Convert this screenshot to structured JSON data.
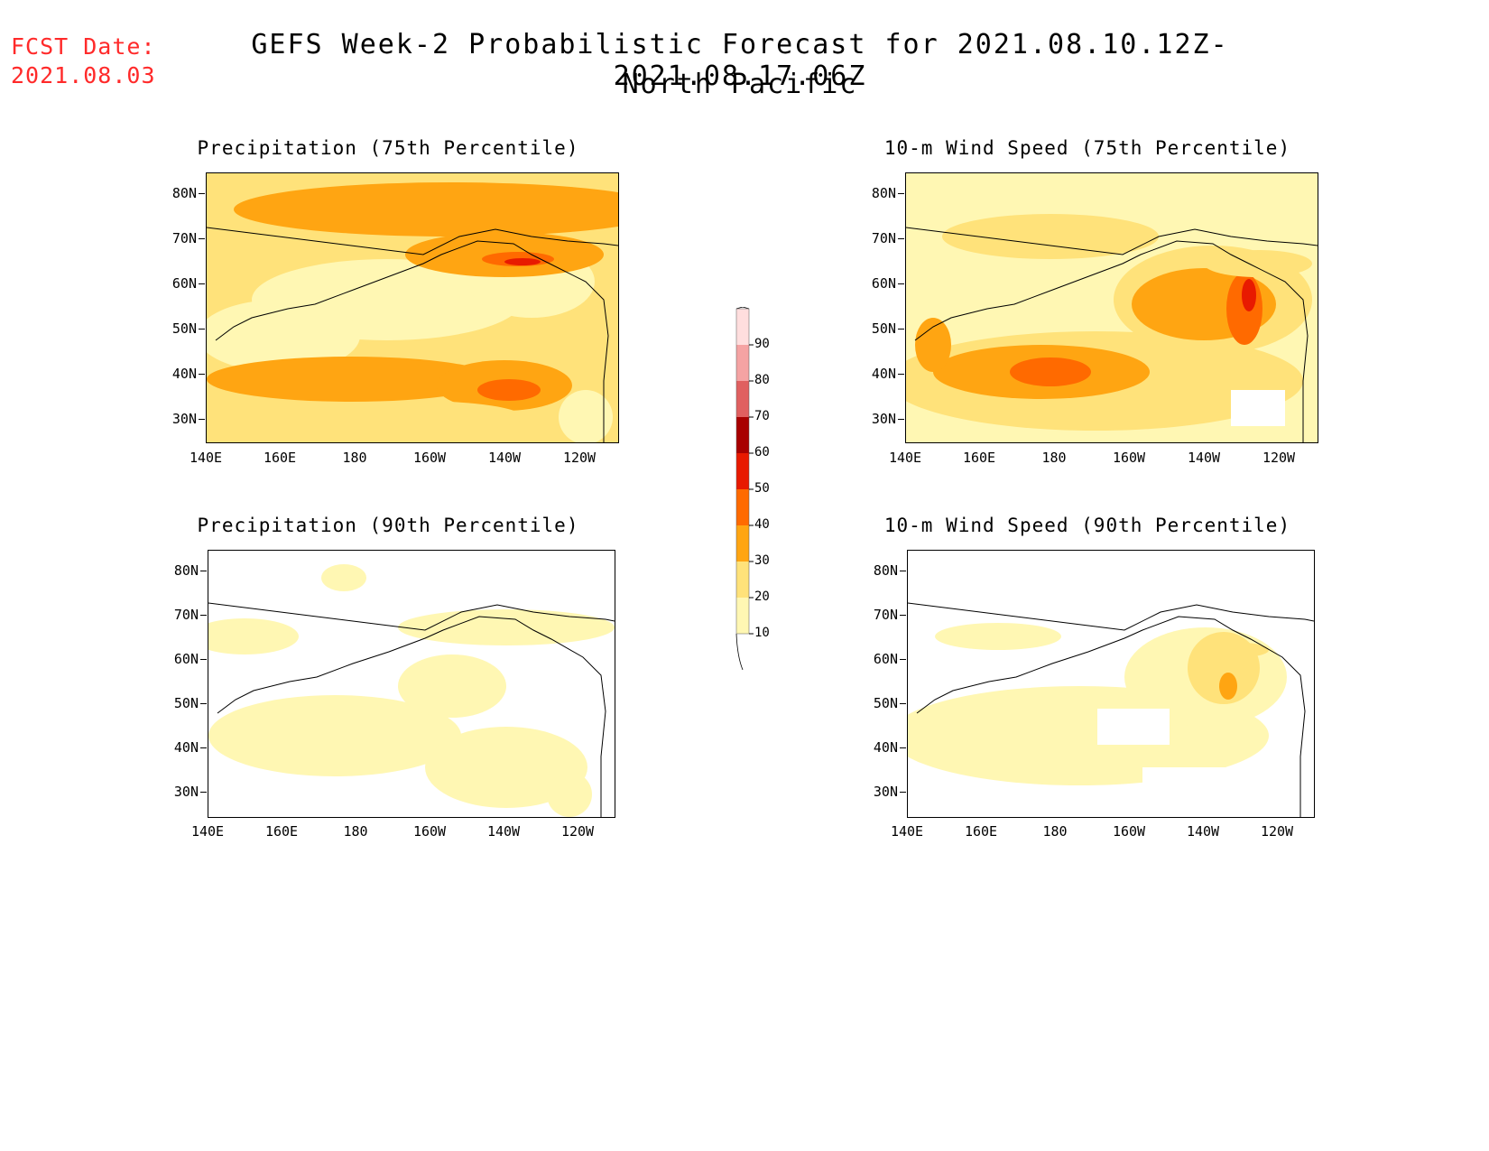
{
  "header": {
    "fcst_label": "FCST Date:",
    "fcst_date": "2021.08.03",
    "title_line1": "GEFS Week-2 Probabilistic Forecast for 2021.08.10.12Z-2021.08.17.06Z",
    "title_line2": "North Pacific"
  },
  "axes": {
    "lat_labels": [
      "80N",
      "70N",
      "60N",
      "50N",
      "40N",
      "30N"
    ],
    "lon_labels": [
      "140E",
      "160E",
      "180",
      "160W",
      "140W",
      "120W"
    ]
  },
  "panels": [
    {
      "id": "precip75",
      "title": "Precipitation (75th Percentile)"
    },
    {
      "id": "wind75",
      "title": "10-m Wind Speed (75th Percentile)"
    },
    {
      "id": "precip90",
      "title": "Precipitation (90th Percentile)"
    },
    {
      "id": "wind90",
      "title": "10-m Wind Speed (90th Percentile)"
    }
  ],
  "colorbar": {
    "levels": [
      "10",
      "20",
      "30",
      "40",
      "50",
      "60",
      "70",
      "80",
      "90"
    ],
    "colors": [
      "#fff7b3",
      "#ffe27a",
      "#ffa512",
      "#ff6a00",
      "#e81a00",
      "#a80000",
      "#e06060",
      "#f5a3a3",
      "#ffdede"
    ]
  }
}
